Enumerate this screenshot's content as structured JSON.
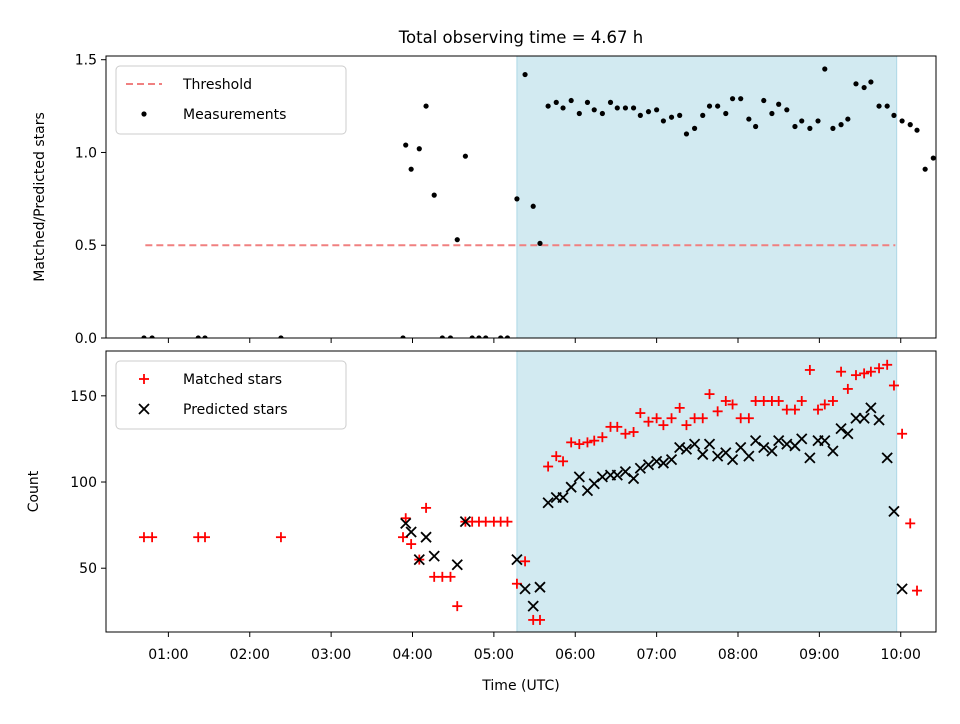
{
  "title": "Total observing time = 4.67 h",
  "xlabel": "Time (UTC)",
  "xticks": [
    "01:00",
    "02:00",
    "03:00",
    "04:00",
    "05:00",
    "06:00",
    "07:00",
    "08:00",
    "09:00",
    "10:00"
  ],
  "colors": {
    "threshold": "#f08080",
    "matched": "#ff0000",
    "predicted": "#000000",
    "shade": "#add8e6"
  },
  "chart_data": [
    {
      "type": "scatter",
      "ylabel": "Matched/Predicted stars",
      "ylim": [
        0,
        1.52
      ],
      "xlim": [
        "00:14",
        "10:26"
      ],
      "yticks": [
        "0.0",
        "0.5",
        "1.0",
        "1.5"
      ],
      "shaded_interval": [
        "05:17",
        "09:57"
      ],
      "legend_position": "upper-left",
      "threshold": {
        "name": "Threshold",
        "y": 0.5,
        "x": [
          "00:43",
          "09:56"
        ]
      },
      "series": [
        {
          "name": "Measurements",
          "points": [
            [
              "00:42",
              0
            ],
            [
              "00:48",
              0
            ],
            [
              "01:22",
              0
            ],
            [
              "01:27",
              0
            ],
            [
              "02:23",
              0
            ],
            [
              "03:53",
              0
            ],
            [
              "03:55",
              1.04
            ],
            [
              "03:59",
              0.91
            ],
            [
              "04:05",
              1.02
            ],
            [
              "04:10",
              1.25
            ],
            [
              "04:16",
              0.77
            ],
            [
              "04:22",
              0
            ],
            [
              "04:28",
              0
            ],
            [
              "04:33",
              0.53
            ],
            [
              "04:39",
              0.98
            ],
            [
              "04:44",
              0
            ],
            [
              "04:49",
              0
            ],
            [
              "04:54",
              0
            ],
            [
              "05:05",
              0
            ],
            [
              "05:10",
              0
            ],
            [
              "05:17",
              0.75
            ],
            [
              "05:23",
              1.42
            ],
            [
              "05:29",
              0.71
            ],
            [
              "05:34",
              0.51
            ],
            [
              "05:40",
              1.25
            ],
            [
              "05:46",
              1.27
            ],
            [
              "05:51",
              1.24
            ],
            [
              "05:57",
              1.28
            ],
            [
              "06:03",
              1.21
            ],
            [
              "06:09",
              1.27
            ],
            [
              "06:14",
              1.23
            ],
            [
              "06:20",
              1.21
            ],
            [
              "06:26",
              1.27
            ],
            [
              "06:31",
              1.24
            ],
            [
              "06:37",
              1.24
            ],
            [
              "06:43",
              1.24
            ],
            [
              "06:48",
              1.2
            ],
            [
              "06:54",
              1.22
            ],
            [
              "07:00",
              1.23
            ],
            [
              "07:05",
              1.17
            ],
            [
              "07:11",
              1.19
            ],
            [
              "07:17",
              1.2
            ],
            [
              "07:22",
              1.1
            ],
            [
              "07:28",
              1.13
            ],
            [
              "07:34",
              1.2
            ],
            [
              "07:39",
              1.25
            ],
            [
              "07:45",
              1.25
            ],
            [
              "07:51",
              1.21
            ],
            [
              "07:56",
              1.29
            ],
            [
              "08:02",
              1.29
            ],
            [
              "08:08",
              1.18
            ],
            [
              "08:13",
              1.14
            ],
            [
              "08:19",
              1.28
            ],
            [
              "08:25",
              1.21
            ],
            [
              "08:30",
              1.26
            ],
            [
              "08:36",
              1.23
            ],
            [
              "08:42",
              1.14
            ],
            [
              "08:47",
              1.17
            ],
            [
              "08:53",
              1.13
            ],
            [
              "08:59",
              1.17
            ],
            [
              "09:04",
              1.45
            ],
            [
              "09:10",
              1.13
            ],
            [
              "09:16",
              1.15
            ],
            [
              "09:21",
              1.18
            ],
            [
              "09:27",
              1.37
            ],
            [
              "09:33",
              1.35
            ],
            [
              "09:38",
              1.38
            ],
            [
              "09:44",
              1.25
            ],
            [
              "09:50",
              1.25
            ],
            [
              "09:55",
              1.2
            ],
            [
              "10:01",
              1.17
            ],
            [
              "10:07",
              1.15
            ],
            [
              "10:12",
              1.12
            ],
            [
              "10:18",
              0.91
            ],
            [
              "10:24",
              0.97
            ]
          ]
        }
      ]
    },
    {
      "type": "scatter",
      "ylabel": "Count",
      "ylim": [
        13,
        176
      ],
      "yticks": [
        "50",
        "100",
        "150"
      ],
      "shaded_interval": [
        "05:17",
        "09:57"
      ],
      "legend_position": "upper-left",
      "series": [
        {
          "name": "Matched stars",
          "marker": "+",
          "points": [
            [
              "00:42",
              68
            ],
            [
              "00:48",
              68
            ],
            [
              "01:22",
              68
            ],
            [
              "01:27",
              68
            ],
            [
              "02:23",
              68
            ],
            [
              "03:53",
              68
            ],
            [
              "03:55",
              79
            ],
            [
              "03:59",
              64
            ],
            [
              "04:05",
              55
            ],
            [
              "04:10",
              85
            ],
            [
              "04:16",
              45
            ],
            [
              "04:22",
              45
            ],
            [
              "04:28",
              45
            ],
            [
              "04:33",
              28
            ],
            [
              "04:39",
              77
            ],
            [
              "04:44",
              77
            ],
            [
              "04:49",
              77
            ],
            [
              "04:54",
              77
            ],
            [
              "05:00",
              77
            ],
            [
              "05:05",
              77
            ],
            [
              "05:10",
              77
            ],
            [
              "05:17",
              41
            ],
            [
              "05:23",
              54
            ],
            [
              "05:29",
              20
            ],
            [
              "05:34",
              20
            ],
            [
              "05:40",
              109
            ],
            [
              "05:46",
              115
            ],
            [
              "05:51",
              112
            ],
            [
              "05:57",
              123
            ],
            [
              "06:03",
              122
            ],
            [
              "06:09",
              123
            ],
            [
              "06:14",
              124
            ],
            [
              "06:20",
              126
            ],
            [
              "06:26",
              132
            ],
            [
              "06:31",
              132
            ],
            [
              "06:37",
              128
            ],
            [
              "06:43",
              129
            ],
            [
              "06:48",
              140
            ],
            [
              "06:54",
              135
            ],
            [
              "07:00",
              137
            ],
            [
              "07:05",
              133
            ],
            [
              "07:11",
              137
            ],
            [
              "07:17",
              143
            ],
            [
              "07:22",
              133
            ],
            [
              "07:28",
              137
            ],
            [
              "07:34",
              137
            ],
            [
              "07:39",
              151
            ],
            [
              "07:45",
              141
            ],
            [
              "07:51",
              147
            ],
            [
              "07:56",
              145
            ],
            [
              "08:02",
              137
            ],
            [
              "08:08",
              137
            ],
            [
              "08:13",
              147
            ],
            [
              "08:19",
              147
            ],
            [
              "08:25",
              147
            ],
            [
              "08:30",
              147
            ],
            [
              "08:36",
              142
            ],
            [
              "08:42",
              142
            ],
            [
              "08:47",
              147
            ],
            [
              "08:53",
              165
            ],
            [
              "08:59",
              142
            ],
            [
              "09:04",
              145
            ],
            [
              "09:10",
              147
            ],
            [
              "09:16",
              164
            ],
            [
              "09:21",
              154
            ],
            [
              "09:27",
              162
            ],
            [
              "09:33",
              163
            ],
            [
              "09:38",
              164
            ],
            [
              "09:44",
              166
            ],
            [
              "09:50",
              168
            ],
            [
              "09:55",
              156
            ],
            [
              "10:01",
              128
            ],
            [
              "10:07",
              76
            ],
            [
              "10:12",
              37
            ]
          ]
        },
        {
          "name": "Predicted stars",
          "marker": "x",
          "points": [
            [
              "03:55",
              76
            ],
            [
              "03:59",
              71
            ],
            [
              "04:05",
              55
            ],
            [
              "04:10",
              68
            ],
            [
              "04:16",
              57
            ],
            [
              "04:33",
              52
            ],
            [
              "04:39",
              77
            ],
            [
              "05:17",
              55
            ],
            [
              "05:23",
              38
            ],
            [
              "05:29",
              28
            ],
            [
              "05:34",
              39
            ],
            [
              "05:40",
              88
            ],
            [
              "05:46",
              91
            ],
            [
              "05:51",
              91
            ],
            [
              "05:57",
              97
            ],
            [
              "06:03",
              103
            ],
            [
              "06:09",
              95
            ],
            [
              "06:14",
              99
            ],
            [
              "06:20",
              103
            ],
            [
              "06:26",
              104
            ],
            [
              "06:31",
              104
            ],
            [
              "06:37",
              106
            ],
            [
              "06:43",
              102
            ],
            [
              "06:48",
              108
            ],
            [
              "06:54",
              110
            ],
            [
              "07:00",
              112
            ],
            [
              "07:05",
              111
            ],
            [
              "07:11",
              113
            ],
            [
              "07:17",
              120
            ],
            [
              "07:22",
              119
            ],
            [
              "07:28",
              122
            ],
            [
              "07:34",
              116
            ],
            [
              "07:39",
              122
            ],
            [
              "07:45",
              115
            ],
            [
              "07:51",
              117
            ],
            [
              "07:56",
              113
            ],
            [
              "08:02",
              120
            ],
            [
              "08:08",
              115
            ],
            [
              "08:13",
              124
            ],
            [
              "08:19",
              120
            ],
            [
              "08:25",
              118
            ],
            [
              "08:30",
              124
            ],
            [
              "08:36",
              122
            ],
            [
              "08:42",
              121
            ],
            [
              "08:47",
              125
            ],
            [
              "08:53",
              114
            ],
            [
              "08:59",
              124
            ],
            [
              "09:04",
              124
            ],
            [
              "09:10",
              118
            ],
            [
              "09:16",
              131
            ],
            [
              "09:21",
              128
            ],
            [
              "09:27",
              137
            ],
            [
              "09:33",
              137
            ],
            [
              "09:38",
              143
            ],
            [
              "09:44",
              136
            ],
            [
              "09:50",
              114
            ],
            [
              "09:55",
              83
            ],
            [
              "10:01",
              38
            ]
          ]
        }
      ]
    }
  ]
}
